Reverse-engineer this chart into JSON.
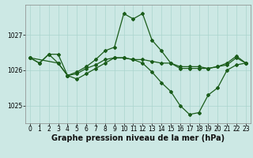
{
  "xlabel": "Graphe pression niveau de la mer (hPa)",
  "background_color": "#cce8e4",
  "grid_color": "#aad4ce",
  "line_color": "#1a5c1a",
  "xlim": [
    -0.5,
    23.5
  ],
  "ylim": [
    1024.5,
    1027.85
  ],
  "yticks": [
    1025,
    1026,
    1027
  ],
  "xticks": [
    0,
    1,
    2,
    3,
    4,
    5,
    6,
    7,
    8,
    9,
    10,
    11,
    12,
    13,
    14,
    15,
    16,
    17,
    18,
    19,
    20,
    21,
    22,
    23
  ],
  "line1_x": [
    0,
    1,
    2,
    3,
    4,
    5,
    6,
    7,
    8,
    9,
    10,
    11,
    12,
    13,
    14,
    15,
    16,
    17,
    18,
    19,
    20,
    21,
    22,
    23
  ],
  "line1_y": [
    1026.35,
    1026.2,
    1026.45,
    1026.45,
    1025.85,
    1025.95,
    1026.1,
    1026.3,
    1026.55,
    1026.65,
    1027.6,
    1027.45,
    1027.6,
    1026.85,
    1026.55,
    1026.2,
    1026.05,
    1026.05,
    1026.05,
    1026.05,
    1026.1,
    1026.2,
    1026.4,
    1026.2
  ],
  "line2_x": [
    0,
    1,
    2,
    3,
    4,
    5,
    6,
    7,
    8,
    9,
    10,
    11,
    12,
    13,
    14,
    15,
    16,
    17,
    18,
    19,
    20,
    21,
    22,
    23
  ],
  "line2_y": [
    1026.35,
    1026.2,
    1026.45,
    1026.2,
    1025.85,
    1025.9,
    1026.05,
    1026.15,
    1026.3,
    1026.35,
    1026.35,
    1026.3,
    1026.3,
    1026.25,
    1026.2,
    1026.2,
    1026.1,
    1026.1,
    1026.1,
    1026.05,
    1026.1,
    1026.15,
    1026.35,
    1026.2
  ],
  "line3_x": [
    0,
    3,
    4,
    5,
    6,
    7,
    8,
    9,
    10,
    11,
    12,
    13,
    14,
    15,
    16,
    17,
    18,
    19,
    20,
    21,
    22,
    23
  ],
  "line3_y": [
    1026.35,
    1026.2,
    1025.85,
    1025.75,
    1025.9,
    1026.05,
    1026.2,
    1026.35,
    1026.35,
    1026.3,
    1026.2,
    1025.95,
    1025.65,
    1025.4,
    1025.0,
    1024.75,
    1024.8,
    1025.3,
    1025.5,
    1026.0,
    1026.15,
    1026.2
  ],
  "marker": "D",
  "markersize": 2.0,
  "linewidth": 0.9,
  "xlabel_fontsize": 7,
  "tick_fontsize": 5.5
}
